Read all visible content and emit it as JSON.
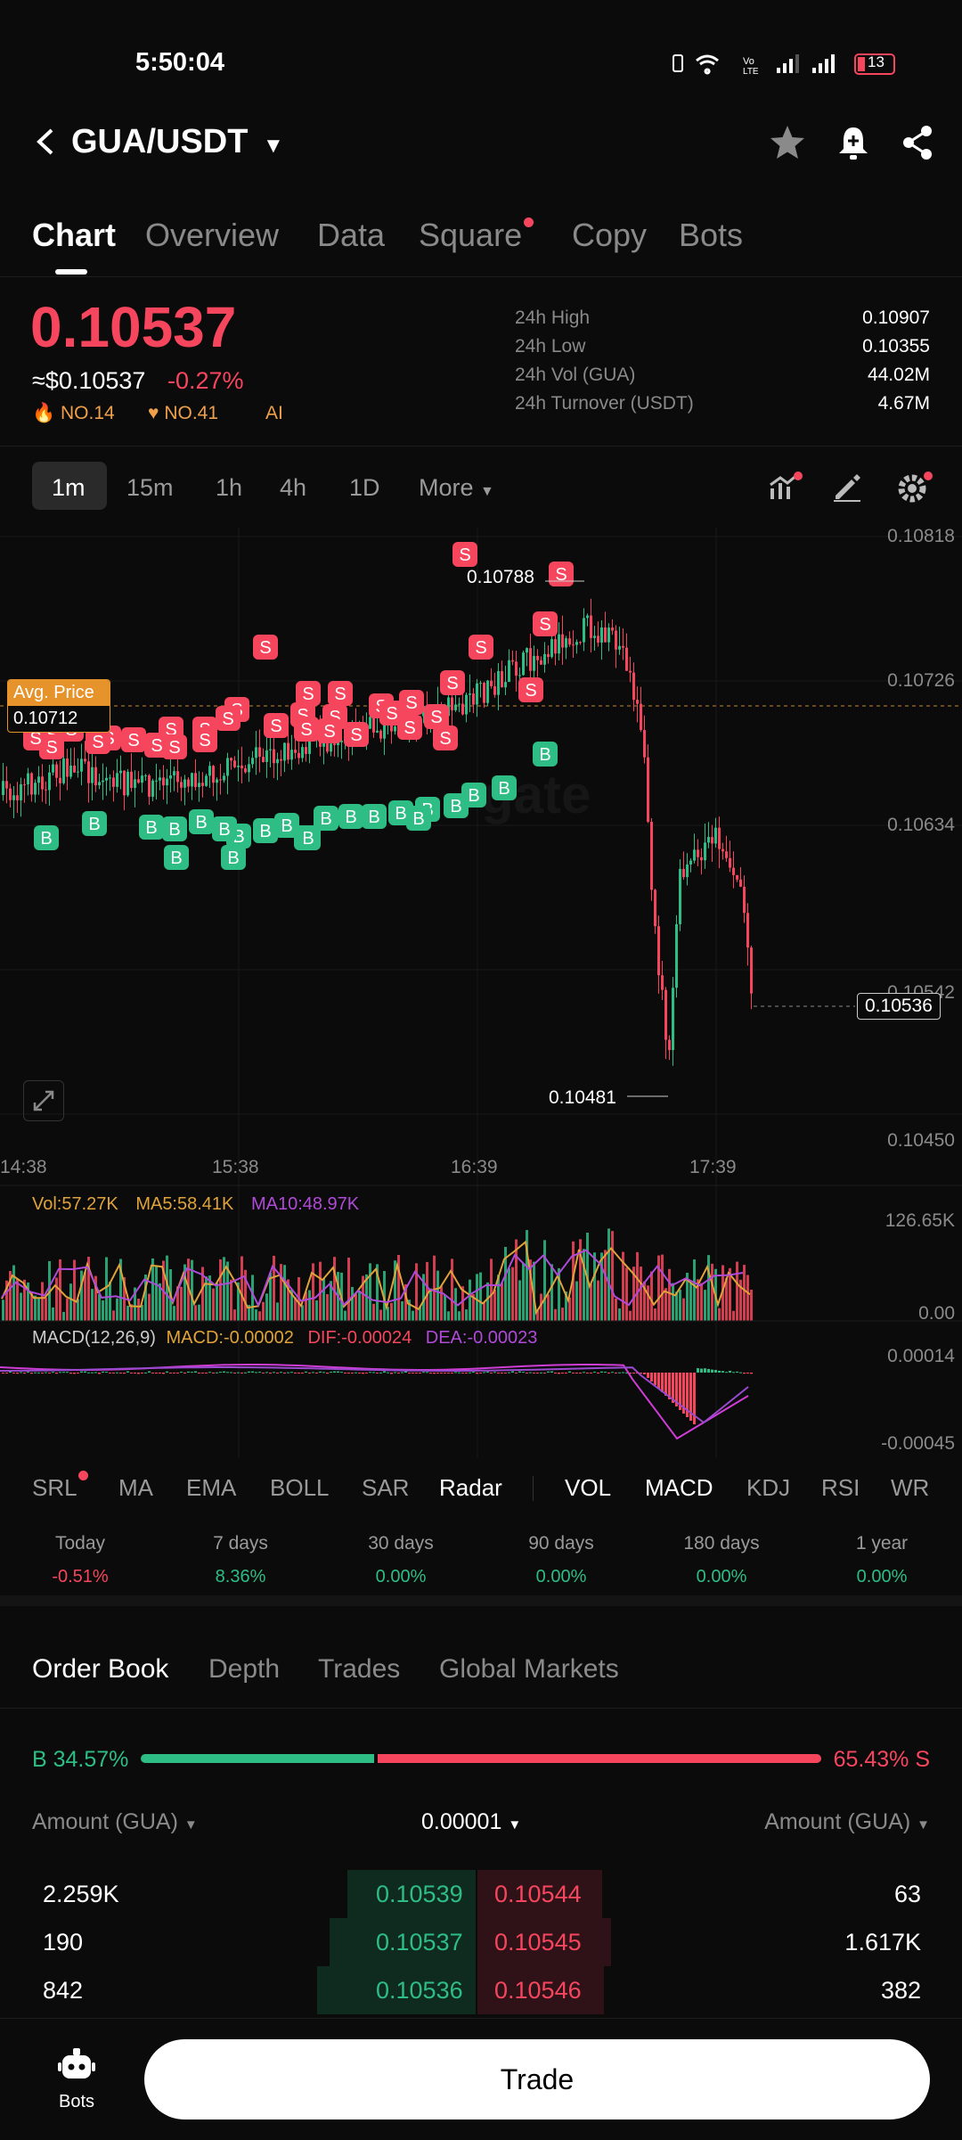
{
  "status_bar": {
    "time": "5:50:04",
    "battery": "13"
  },
  "header": {
    "pair": "GUA/USDT"
  },
  "tabs": [
    {
      "label": "Chart",
      "active": true
    },
    {
      "label": "Overview"
    },
    {
      "label": "Data"
    },
    {
      "label": "Square"
    },
    {
      "label": "Copy"
    },
    {
      "label": "Bots"
    }
  ],
  "price": {
    "last": "0.10537",
    "usd": "≈$0.10537",
    "change": "-0.27%",
    "rank_hot": "NO.14",
    "rank_fav": "NO.41",
    "ai": "AI"
  },
  "stats": [
    {
      "label": "24h High",
      "value": "0.10907"
    },
    {
      "label": "24h Low",
      "value": "0.10355"
    },
    {
      "label": "24h Vol (GUA)",
      "value": "44.02M"
    },
    {
      "label": "24h Turnover (USDT)",
      "value": "4.67M"
    }
  ],
  "intervals": [
    "1m",
    "15m",
    "1h",
    "4h",
    "1D",
    "More"
  ],
  "chart": {
    "price_axis": [
      "0.10818",
      "0.10726",
      "0.10634",
      "0.10542",
      "0.10450"
    ],
    "time_axis": [
      "14:38",
      "15:38",
      "16:39",
      "17:39"
    ],
    "avg_price_label": "Avg. Price",
    "avg_price_value": "0.10712",
    "current_price": "0.10536",
    "high_marker": "0.10788",
    "low_marker": "0.10481",
    "watermark": "gate"
  },
  "volume": {
    "vol": "Vol:57.27K",
    "ma5": "MA5:58.41K",
    "ma10": "MA10:48.97K",
    "axis_top": "126.65K",
    "axis_bottom": "0.00"
  },
  "macd": {
    "name": "MACD(12,26,9)",
    "macd": "MACD:-0.00002",
    "dif": "DIF:-0.00024",
    "dea": "DEA:-0.00023",
    "axis_top": "0.00014",
    "axis_bottom": "-0.00045"
  },
  "indicators": [
    "SRL",
    "MA",
    "EMA",
    "BOLL",
    "SAR",
    "Radar",
    "VOL",
    "MACD",
    "KDJ",
    "RSI",
    "WR"
  ],
  "periods": [
    {
      "label": "Today",
      "value": "-0.51%"
    },
    {
      "label": "7 days",
      "value": "8.36%"
    },
    {
      "label": "30 days",
      "value": "0.00%"
    },
    {
      "label": "90 days",
      "value": "0.00%"
    },
    {
      "label": "180 days",
      "value": "0.00%"
    },
    {
      "label": "1 year",
      "value": "0.00%"
    }
  ],
  "order_book": {
    "tabs": [
      "Order Book",
      "Depth",
      "Trades",
      "Global Markets"
    ],
    "buy_ratio": "B 34.57%",
    "sell_ratio": "65.43% S",
    "buy_fraction": 0.3457,
    "col_left": "Amount (GUA)",
    "precision": "0.00001",
    "col_right": "Amount (GUA)",
    "rows": [
      {
        "bid_amount": "2.259K",
        "bid_price": "0.10539",
        "ask_price": "0.10544",
        "ask_amount": "63"
      },
      {
        "bid_amount": "190",
        "bid_price": "0.10537",
        "ask_price": "0.10545",
        "ask_amount": "1.617K"
      },
      {
        "bid_amount": "842",
        "bid_price": "0.10536",
        "ask_price": "0.10546",
        "ask_amount": "382"
      }
    ]
  },
  "bottom_bar": {
    "bots_label": "Bots",
    "trade_label": "Trade"
  }
}
